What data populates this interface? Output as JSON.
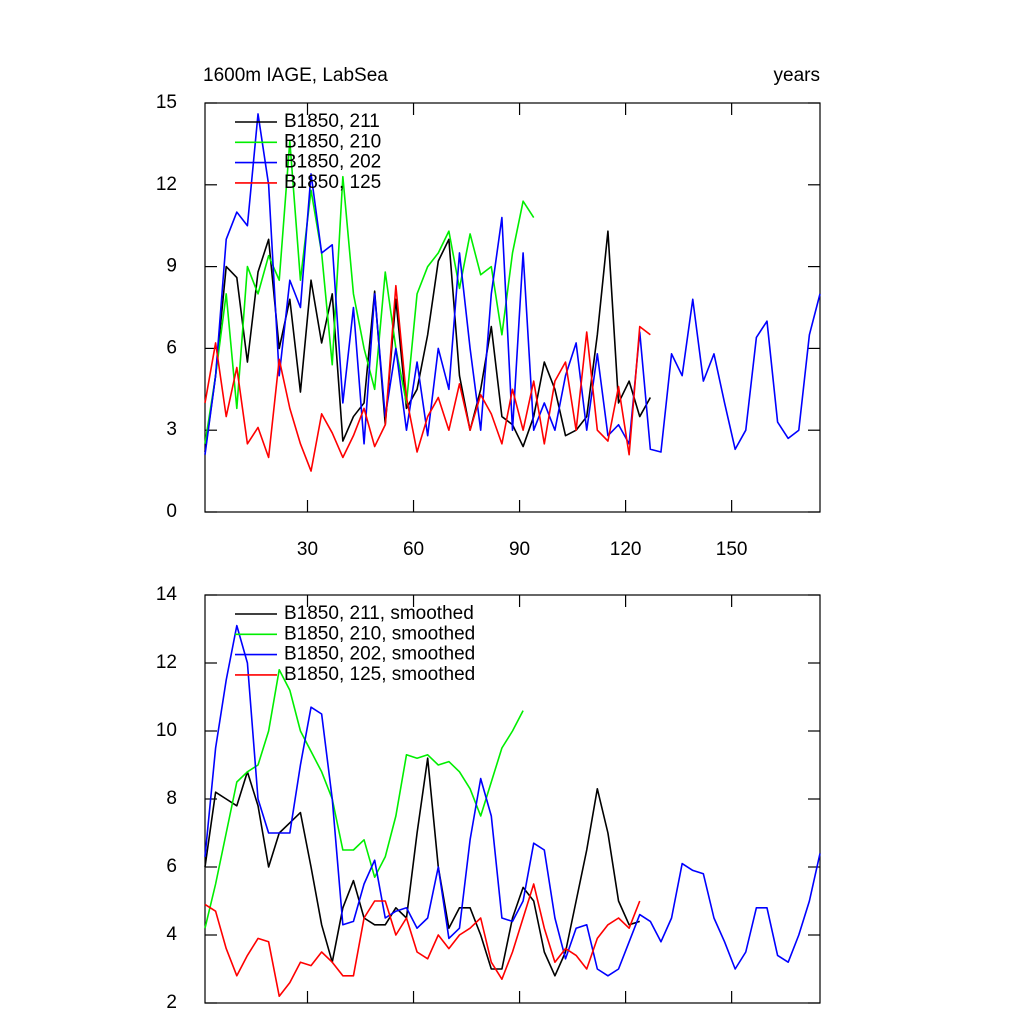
{
  "chart_data": [
    {
      "type": "line",
      "title": "1600m IAGE, LabSea",
      "unit_label": "years",
      "xlim": [
        1,
        175
      ],
      "xticks": [
        30,
        60,
        90,
        120,
        150
      ],
      "ylim": [
        0,
        15
      ],
      "yticks": [
        0,
        3,
        6,
        9,
        12,
        15
      ],
      "series": [
        {
          "name": "B1850, 211",
          "color": "#000000",
          "x": [
            1,
            4,
            7,
            10,
            13,
            16,
            19,
            22,
            25,
            28,
            31,
            34,
            37,
            40,
            43,
            46,
            49,
            52,
            55,
            58,
            61,
            64,
            67,
            70,
            73,
            76,
            79,
            82,
            85,
            88,
            91,
            94,
            97,
            100,
            103,
            106,
            109,
            112,
            115,
            118,
            121,
            124,
            127
          ],
          "values": [
            2.2,
            5.0,
            9.0,
            8.6,
            5.5,
            8.8,
            10.0,
            6.0,
            7.8,
            4.4,
            8.5,
            6.2,
            8.0,
            2.6,
            3.5,
            4.0,
            8.1,
            3.2,
            7.8,
            3.8,
            4.5,
            6.5,
            9.2,
            10.0,
            5.0,
            3.0,
            4.5,
            6.8,
            3.5,
            3.2,
            2.4,
            3.5,
            5.5,
            4.5,
            2.8,
            3.0,
            3.5,
            6.5,
            10.3,
            4.0,
            4.8,
            3.5,
            4.2
          ]
        },
        {
          "name": "B1850, 210",
          "color": "#00ee00",
          "x": [
            1,
            4,
            7,
            10,
            13,
            16,
            19,
            22,
            25,
            28,
            31,
            34,
            37,
            40,
            43,
            46,
            49,
            52,
            55,
            58,
            61,
            64,
            67,
            70,
            73,
            76,
            79,
            82,
            85,
            88,
            91,
            94
          ],
          "values": [
            2.5,
            5.0,
            8.0,
            3.8,
            9.0,
            8.0,
            9.4,
            8.5,
            13.6,
            8.5,
            11.8,
            9.5,
            5.4,
            12.3,
            8.0,
            6.0,
            4.5,
            8.8,
            6.0,
            4.0,
            8.0,
            9.0,
            9.5,
            10.3,
            8.2,
            10.2,
            8.7,
            9.0,
            6.5,
            9.5,
            11.4,
            10.8
          ]
        },
        {
          "name": "B1850, 202",
          "color": "#0000ff",
          "x": [
            1,
            4,
            7,
            10,
            13,
            16,
            19,
            22,
            25,
            28,
            31,
            34,
            37,
            40,
            43,
            46,
            49,
            52,
            55,
            58,
            61,
            64,
            67,
            70,
            73,
            76,
            79,
            82,
            85,
            88,
            91,
            94,
            97,
            100,
            103,
            106,
            109,
            112,
            115,
            118,
            121,
            124,
            127,
            130,
            133,
            136,
            139,
            142,
            145,
            148,
            151,
            154,
            157,
            160,
            163,
            166,
            169,
            172,
            175
          ],
          "values": [
            2.1,
            5.0,
            10.0,
            11.0,
            10.5,
            14.6,
            12.0,
            5.0,
            8.5,
            7.5,
            12.4,
            9.5,
            9.8,
            4.0,
            7.5,
            2.5,
            8.0,
            3.5,
            6.0,
            3.0,
            5.5,
            2.8,
            6.0,
            4.5,
            9.5,
            6.0,
            3.0,
            8.0,
            10.8,
            3.0,
            9.5,
            3.0,
            4.0,
            3.0,
            5.0,
            6.2,
            3.0,
            5.8,
            2.8,
            3.2,
            2.5,
            6.6,
            2.3,
            2.2,
            5.8,
            5.0,
            7.8,
            4.8,
            5.8,
            4.0,
            2.3,
            3.0,
            6.4,
            7.0,
            3.3,
            2.7,
            3.0,
            6.5,
            8.0
          ]
        },
        {
          "name": "B1850, 125",
          "color": "#ff0000",
          "x": [
            1,
            4,
            7,
            10,
            13,
            16,
            19,
            22,
            25,
            28,
            31,
            34,
            37,
            40,
            43,
            46,
            49,
            52,
            55,
            58,
            61,
            64,
            67,
            70,
            73,
            76,
            79,
            82,
            85,
            88,
            91,
            94,
            97,
            100,
            103,
            106,
            109,
            112,
            115,
            118,
            121,
            124,
            127
          ],
          "values": [
            4.0,
            6.2,
            3.5,
            5.3,
            2.5,
            3.1,
            2.0,
            5.6,
            3.8,
            2.5,
            1.5,
            3.6,
            2.9,
            2.0,
            2.8,
            3.8,
            2.4,
            3.2,
            8.3,
            4.2,
            2.2,
            3.5,
            4.2,
            3.0,
            4.7,
            3.0,
            4.3,
            3.6,
            2.5,
            4.5,
            3.0,
            4.8,
            2.5,
            4.8,
            5.5,
            3.0,
            6.6,
            3.0,
            2.6,
            4.6,
            2.1,
            6.8,
            6.5
          ]
        }
      ]
    },
    {
      "type": "line",
      "xlim": [
        1,
        175
      ],
      "xticks": [
        30,
        60,
        90,
        120,
        150
      ],
      "ylim": [
        2,
        14
      ],
      "yticks": [
        2,
        4,
        6,
        8,
        10,
        12,
        14
      ],
      "series": [
        {
          "name": "B1850, 211, smoothed",
          "color": "#000000",
          "x": [
            1,
            4,
            7,
            10,
            13,
            16,
            19,
            22,
            25,
            28,
            31,
            34,
            37,
            40,
            43,
            46,
            49,
            52,
            55,
            58,
            61,
            64,
            67,
            70,
            73,
            76,
            79,
            82,
            85,
            88,
            91,
            94,
            97,
            100,
            103,
            106,
            109,
            112,
            115,
            118,
            121,
            124
          ],
          "values": [
            6.0,
            8.2,
            8.0,
            7.8,
            8.8,
            7.8,
            6.0,
            7.0,
            7.3,
            7.6,
            6.0,
            4.3,
            3.2,
            4.8,
            5.6,
            4.5,
            4.3,
            4.3,
            4.8,
            4.5,
            7.0,
            9.2,
            6.0,
            4.2,
            4.8,
            4.8,
            4.0,
            3.0,
            3.0,
            4.5,
            5.4,
            5.0,
            3.5,
            2.8,
            3.5,
            5.0,
            6.5,
            8.3,
            7.0,
            5.0,
            4.3,
            4.4
          ]
        },
        {
          "name": "B1850, 210, smoothed",
          "color": "#00ee00",
          "x": [
            1,
            4,
            7,
            10,
            13,
            16,
            19,
            22,
            25,
            28,
            31,
            34,
            37,
            40,
            43,
            46,
            49,
            52,
            55,
            58,
            61,
            64,
            67,
            70,
            73,
            76,
            79,
            82,
            85,
            88,
            91
          ],
          "values": [
            4.2,
            5.5,
            7.0,
            8.5,
            8.8,
            9.0,
            10.0,
            11.8,
            11.2,
            10.0,
            9.4,
            8.8,
            8.0,
            6.5,
            6.5,
            6.8,
            5.7,
            6.3,
            7.5,
            9.3,
            9.2,
            9.3,
            9.0,
            9.1,
            8.8,
            8.3,
            7.5,
            8.5,
            9.5,
            10.0,
            10.6
          ]
        },
        {
          "name": "B1850, 202, smoothed",
          "color": "#0000ff",
          "x": [
            1,
            4,
            7,
            10,
            13,
            16,
            19,
            22,
            25,
            28,
            31,
            34,
            37,
            40,
            43,
            46,
            49,
            52,
            55,
            58,
            61,
            64,
            67,
            70,
            73,
            76,
            79,
            82,
            85,
            88,
            91,
            94,
            97,
            100,
            103,
            106,
            109,
            112,
            115,
            118,
            121,
            124,
            127,
            130,
            133,
            136,
            139,
            142,
            145,
            148,
            151,
            154,
            157,
            160,
            163,
            166,
            169,
            172,
            175
          ],
          "values": [
            6.3,
            9.5,
            11.5,
            13.1,
            12.0,
            8.0,
            7.0,
            7.0,
            7.0,
            9.0,
            10.7,
            10.5,
            8.0,
            4.3,
            4.4,
            5.5,
            6.2,
            4.5,
            4.7,
            4.8,
            4.2,
            4.5,
            6.0,
            3.9,
            4.2,
            6.8,
            8.6,
            7.5,
            4.5,
            4.4,
            5.0,
            6.7,
            6.5,
            4.5,
            3.3,
            4.2,
            4.3,
            3.0,
            2.8,
            3.0,
            3.8,
            4.6,
            4.4,
            3.8,
            4.5,
            6.1,
            5.9,
            5.8,
            4.5,
            3.8,
            3.0,
            3.5,
            4.8,
            4.8,
            3.4,
            3.2,
            4.0,
            5.0,
            6.4
          ]
        },
        {
          "name": "B1850, 125, smoothed",
          "color": "#ff0000",
          "x": [
            1,
            4,
            7,
            10,
            13,
            16,
            19,
            22,
            25,
            28,
            31,
            34,
            37,
            40,
            43,
            46,
            49,
            52,
            55,
            58,
            61,
            64,
            67,
            70,
            73,
            76,
            79,
            82,
            85,
            88,
            91,
            94,
            97,
            100,
            103,
            106,
            109,
            112,
            115,
            118,
            121,
            124
          ],
          "values": [
            4.9,
            4.7,
            3.6,
            2.8,
            3.4,
            3.9,
            3.8,
            2.2,
            2.6,
            3.2,
            3.1,
            3.5,
            3.2,
            2.8,
            2.8,
            4.5,
            5.0,
            5.0,
            4.0,
            4.5,
            3.5,
            3.3,
            4.0,
            3.6,
            4.0,
            4.2,
            4.5,
            3.2,
            2.7,
            3.5,
            4.5,
            5.5,
            4.2,
            3.2,
            3.6,
            3.4,
            3.0,
            3.9,
            4.3,
            4.5,
            4.2,
            5.0
          ]
        }
      ]
    }
  ]
}
